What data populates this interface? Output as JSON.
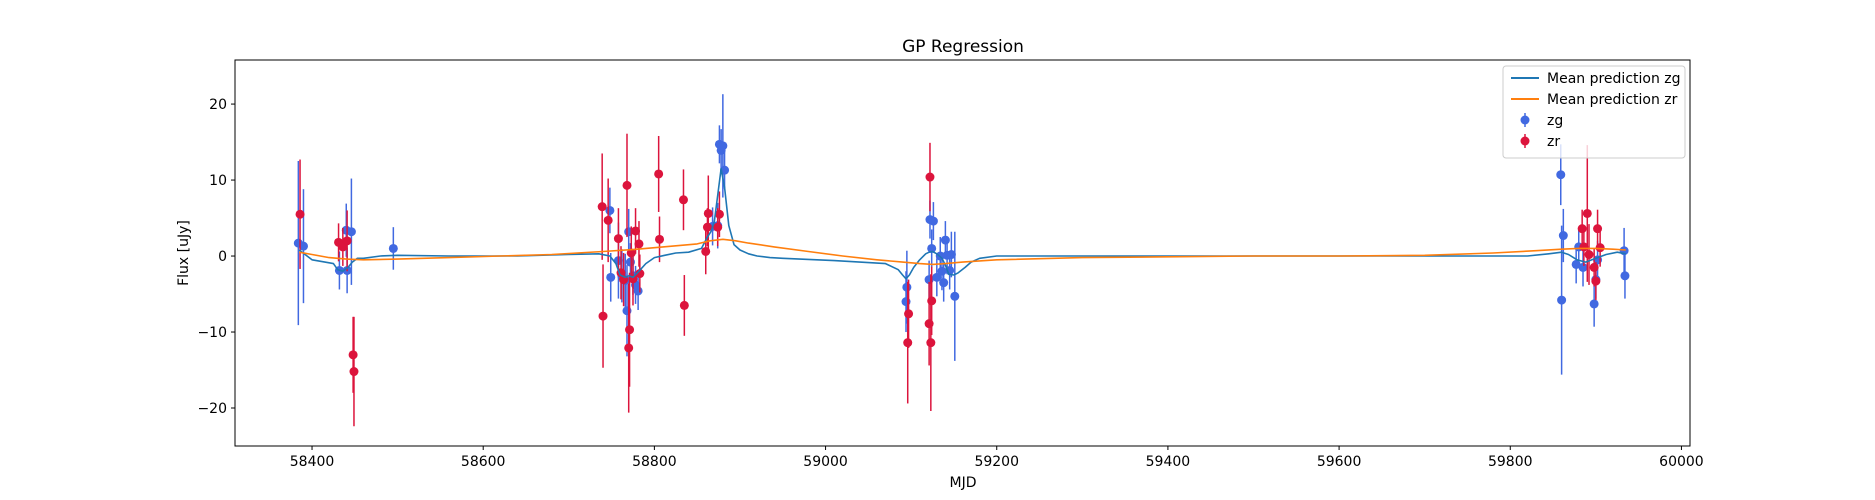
{
  "chart_data": {
    "type": "scatter",
    "title": "GP Regression",
    "xlabel": "MJD",
    "ylabel": "Flux [uJy]",
    "xlim": [
      58310,
      60010
    ],
    "ylim": [
      -25,
      25.8
    ],
    "xticks": [
      58400,
      58600,
      58800,
      59000,
      59200,
      59400,
      59600,
      59800,
      60000
    ],
    "yticks": [
      -20,
      -10,
      0,
      10,
      20
    ],
    "grid": false,
    "legend_position": "top-right",
    "series": [
      {
        "name": "Mean prediction zg",
        "kind": "line",
        "color": "#1f77b4",
        "x": [
          58385,
          58400,
          58415,
          58425,
          58430,
          58436,
          58442,
          58447,
          58453,
          58460,
          58480,
          58500,
          58560,
          58640,
          58700,
          58735,
          58748,
          58755,
          58760,
          58766,
          58770,
          58775,
          58782,
          58790,
          58800,
          58812,
          58825,
          58840,
          58855,
          58862,
          58866,
          58870,
          58874,
          58878,
          58882,
          58887,
          58893,
          58900,
          58910,
          58920,
          58935,
          58950,
          58970,
          58990,
          59010,
          59040,
          59070,
          59085,
          59090,
          59094,
          59098,
          59103,
          59110,
          59117,
          59121,
          59125,
          59130,
          59136,
          59140,
          59144,
          59150,
          59155,
          59163,
          59170,
          59180,
          59200,
          59300,
          59500,
          59700,
          59820,
          59845,
          59860,
          59868,
          59878,
          59888,
          59900,
          59912,
          59925,
          59935
        ],
        "y": [
          0.8,
          -0.5,
          -0.8,
          -1.0,
          -1.8,
          -2.0,
          -1.5,
          -0.8,
          -0.3,
          -0.3,
          0.0,
          0.1,
          0.0,
          0.0,
          0.2,
          0.3,
          0.0,
          -1.0,
          -2.5,
          -2.8,
          -2.6,
          -2.8,
          -2.0,
          -1.0,
          -0.2,
          0.1,
          0.4,
          0.5,
          1.0,
          2.5,
          3.2,
          4.5,
          8.0,
          11.5,
          9.0,
          4.0,
          1.5,
          0.8,
          0.3,
          0.0,
          -0.2,
          -0.3,
          -0.4,
          -0.5,
          -0.6,
          -0.8,
          -1.0,
          -1.8,
          -2.5,
          -3.0,
          -2.5,
          -1.5,
          -0.5,
          0.3,
          0.5,
          0.6,
          0.3,
          -0.3,
          -1.2,
          -2.4,
          -2.5,
          -2.2,
          -1.5,
          -0.8,
          -0.3,
          0.0,
          0.0,
          0.0,
          0.0,
          0.0,
          0.3,
          0.5,
          0.2,
          -0.5,
          -0.8,
          -0.3,
          0.2,
          0.5,
          0.3
        ]
      },
      {
        "name": "Mean prediction zr",
        "kind": "line",
        "color": "#ff7f0e",
        "x": [
          58385,
          58400,
          58420,
          58440,
          58460,
          58500,
          58560,
          58620,
          58680,
          58740,
          58780,
          58820,
          58850,
          58865,
          58880,
          58895,
          58910,
          58940,
          58980,
          59020,
          59060,
          59090,
          59110,
          59125,
          59140,
          59160,
          59200,
          59300,
          59400,
          59500,
          59600,
          59700,
          59780,
          59830,
          59860,
          59880,
          59900,
          59920,
          59935
        ],
        "y": [
          0.5,
          0.2,
          -0.2,
          -0.4,
          -0.5,
          -0.4,
          -0.2,
          0.0,
          0.2,
          0.6,
          0.9,
          1.3,
          1.6,
          2.0,
          2.2,
          2.0,
          1.7,
          1.2,
          0.6,
          0.0,
          -0.5,
          -0.8,
          -1.0,
          -1.1,
          -1.0,
          -0.8,
          -0.5,
          -0.2,
          -0.1,
          0.0,
          0.0,
          0.1,
          0.4,
          0.7,
          0.9,
          1.0,
          1.0,
          0.9,
          0.8
        ]
      },
      {
        "name": "zg",
        "kind": "errorbar",
        "color": "#4169e1",
        "points": [
          {
            "x": 58384,
            "y": 1.7,
            "err": 10.8
          },
          {
            "x": 58390,
            "y": 1.3,
            "err": 7.5
          },
          {
            "x": 58432,
            "y": -1.9,
            "err": 2.5
          },
          {
            "x": 58440,
            "y": 3.4,
            "err": 3.5
          },
          {
            "x": 58441,
            "y": -1.9,
            "err": 3.0
          },
          {
            "x": 58446,
            "y": 3.2,
            "err": 7.0
          },
          {
            "x": 58495,
            "y": 1.0,
            "err": 2.8
          },
          {
            "x": 58748,
            "y": 6.0,
            "err": 3.0
          },
          {
            "x": 58749,
            "y": -2.8,
            "err": 3.2
          },
          {
            "x": 58758,
            "y": -0.6,
            "err": 5.0
          },
          {
            "x": 58762,
            "y": -2.6,
            "err": 3.5
          },
          {
            "x": 58766,
            "y": -3.2,
            "err": 3.5
          },
          {
            "x": 58768,
            "y": -7.2,
            "err": 6.0
          },
          {
            "x": 58770,
            "y": 3.2,
            "err": 3.0
          },
          {
            "x": 58772,
            "y": -0.8,
            "err": 2.5
          },
          {
            "x": 58775,
            "y": -2.6,
            "err": 2.5
          },
          {
            "x": 58778,
            "y": -3.8,
            "err": 2.5
          },
          {
            "x": 58781,
            "y": -4.6,
            "err": 2.5
          },
          {
            "x": 58868,
            "y": 3.9,
            "err": 2.5
          },
          {
            "x": 58874,
            "y": 4.0,
            "err": 3.0
          },
          {
            "x": 58876,
            "y": 14.7,
            "err": 2.5
          },
          {
            "x": 58878,
            "y": 13.9,
            "err": 2.8
          },
          {
            "x": 58880,
            "y": 14.5,
            "err": 6.8
          },
          {
            "x": 58882,
            "y": 11.3,
            "err": 2.5
          },
          {
            "x": 59094,
            "y": -6.0,
            "err": 4.0
          },
          {
            "x": 59095,
            "y": -4.1,
            "err": 4.8
          },
          {
            "x": 59121,
            "y": -3.1,
            "err": 2.5
          },
          {
            "x": 59122,
            "y": 4.8,
            "err": 2.5
          },
          {
            "x": 59124,
            "y": 1.0,
            "err": 2.5
          },
          {
            "x": 59126,
            "y": 4.6,
            "err": 2.5
          },
          {
            "x": 59130,
            "y": -2.8,
            "err": 2.5
          },
          {
            "x": 59134,
            "y": 0.0,
            "err": 2.5
          },
          {
            "x": 59136,
            "y": -2.0,
            "err": 2.5
          },
          {
            "x": 59138,
            "y": -3.5,
            "err": 2.5
          },
          {
            "x": 59140,
            "y": 2.1,
            "err": 2.5
          },
          {
            "x": 59142,
            "y": 0.1,
            "err": 2.5
          },
          {
            "x": 59145,
            "y": -1.9,
            "err": 2.5
          },
          {
            "x": 59147,
            "y": 0.2,
            "err": 3.0
          },
          {
            "x": 59151,
            "y": -5.3,
            "err": 8.5
          },
          {
            "x": 59859,
            "y": 10.7,
            "err": 4.0
          },
          {
            "x": 59860,
            "y": -5.8,
            "err": 9.8
          },
          {
            "x": 59862,
            "y": 2.7,
            "err": 3.5
          },
          {
            "x": 59877,
            "y": -1.1,
            "err": 2.5
          },
          {
            "x": 59880,
            "y": 1.2,
            "err": 2.5
          },
          {
            "x": 59885,
            "y": -1.5,
            "err": 2.5
          },
          {
            "x": 59898,
            "y": -6.3,
            "err": 3.0
          },
          {
            "x": 59900,
            "y": -3.1,
            "err": 2.5
          },
          {
            "x": 59902,
            "y": -0.5,
            "err": 2.5
          },
          {
            "x": 59933,
            "y": 0.7,
            "err": 3.0
          },
          {
            "x": 59934,
            "y": -2.6,
            "err": 3.0
          }
        ]
      },
      {
        "name": "zr",
        "kind": "errorbar",
        "color": "#dc143c",
        "points": [
          {
            "x": 58386,
            "y": 5.5,
            "err": 7.2
          },
          {
            "x": 58431,
            "y": 1.8,
            "err": 2.5
          },
          {
            "x": 58436,
            "y": 1.2,
            "err": 2.5
          },
          {
            "x": 58441,
            "y": 2.0,
            "err": 4.0
          },
          {
            "x": 58448,
            "y": -13.0,
            "err": 5.0
          },
          {
            "x": 58449,
            "y": -15.2,
            "err": 7.2
          },
          {
            "x": 58739,
            "y": 6.5,
            "err": 7.0
          },
          {
            "x": 58740,
            "y": -7.9,
            "err": 6.8
          },
          {
            "x": 58746,
            "y": 4.7,
            "err": 5.5
          },
          {
            "x": 58758,
            "y": 2.3,
            "err": 4.0
          },
          {
            "x": 58761,
            "y": -2.2,
            "err": 3.5
          },
          {
            "x": 58764,
            "y": -3.1,
            "err": 3.5
          },
          {
            "x": 58768,
            "y": 9.3,
            "err": 6.8
          },
          {
            "x": 58770,
            "y": -12.1,
            "err": 8.5
          },
          {
            "x": 58771,
            "y": -9.7,
            "err": 7.5
          },
          {
            "x": 58773,
            "y": 0.4,
            "err": 3.5
          },
          {
            "x": 58775,
            "y": -3.0,
            "err": 3.5
          },
          {
            "x": 58778,
            "y": 3.3,
            "err": 3.0
          },
          {
            "x": 58782,
            "y": 1.6,
            "err": 3.0
          },
          {
            "x": 58783,
            "y": -2.3,
            "err": 2.5
          },
          {
            "x": 58805,
            "y": 10.8,
            "err": 5.0
          },
          {
            "x": 58806,
            "y": 2.2,
            "err": 3.0
          },
          {
            "x": 58834,
            "y": 7.4,
            "err": 4.0
          },
          {
            "x": 58835,
            "y": -6.5,
            "err": 4.0
          },
          {
            "x": 58860,
            "y": 0.6,
            "err": 3.0
          },
          {
            "x": 58862,
            "y": 3.8,
            "err": 2.5
          },
          {
            "x": 58863,
            "y": 5.6,
            "err": 5.0
          },
          {
            "x": 58874,
            "y": 3.8,
            "err": 2.5
          },
          {
            "x": 58876,
            "y": 5.5,
            "err": 3.0
          },
          {
            "x": 59096,
            "y": -11.4,
            "err": 8.0
          },
          {
            "x": 59097,
            "y": -7.6,
            "err": 4.5
          },
          {
            "x": 59121,
            "y": -8.9,
            "err": 5.5
          },
          {
            "x": 59122,
            "y": 10.4,
            "err": 4.5
          },
          {
            "x": 59123,
            "y": -11.4,
            "err": 9.0
          },
          {
            "x": 59124,
            "y": -5.9,
            "err": 4.5
          },
          {
            "x": 59884,
            "y": 3.6,
            "err": 2.5
          },
          {
            "x": 59886,
            "y": 1.2,
            "err": 2.5
          },
          {
            "x": 59890,
            "y": 5.6,
            "err": 9.0
          },
          {
            "x": 59892,
            "y": 0.2,
            "err": 4.0
          },
          {
            "x": 59898,
            "y": -1.5,
            "err": 2.5
          },
          {
            "x": 59900,
            "y": -3.3,
            "err": 2.5
          },
          {
            "x": 59902,
            "y": 3.6,
            "err": 2.5
          },
          {
            "x": 59905,
            "y": 1.1,
            "err": 2.5
          }
        ]
      }
    ]
  }
}
